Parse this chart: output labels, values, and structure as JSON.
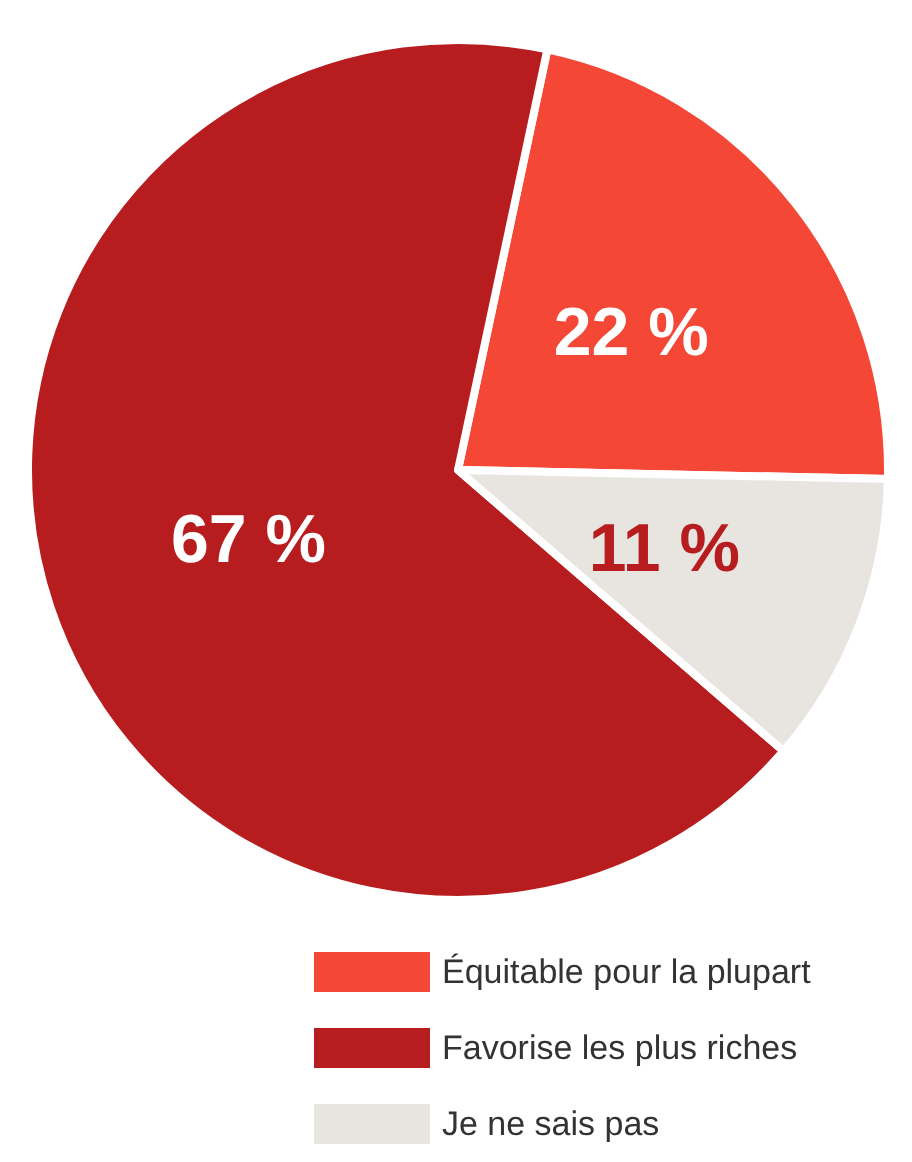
{
  "chart_data": {
    "type": "pie",
    "categories": [
      "Équitable pour la plupart",
      "Favorise les plus riches",
      "Je ne sais pas"
    ],
    "values": [
      22,
      67,
      11
    ],
    "colors": [
      "#f44736",
      "#b71c1f",
      "#e8e4e0"
    ],
    "value_labels": [
      "22 %",
      "67 %",
      "11 %"
    ],
    "legend": "bottom"
  }
}
